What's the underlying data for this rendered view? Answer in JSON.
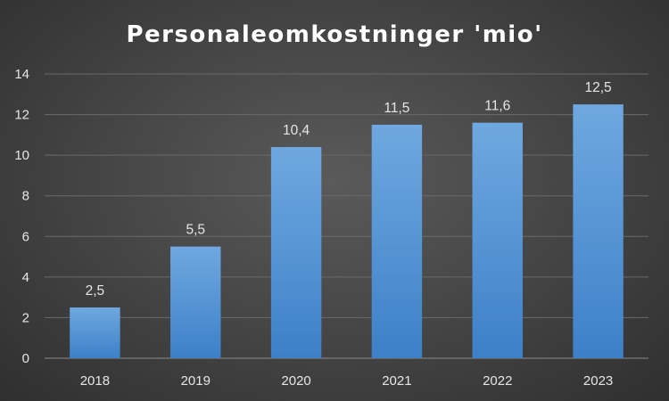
{
  "chart_data": {
    "type": "bar",
    "title": "Personaleomkostninger 'mio'",
    "xlabel": "",
    "ylabel": "",
    "categories": [
      "2018",
      "2019",
      "2020",
      "2021",
      "2022",
      "2023"
    ],
    "values": [
      2.5,
      5.5,
      10.4,
      11.5,
      11.6,
      12.5
    ],
    "data_labels": [
      "2,5",
      "5,5",
      "10,4",
      "11,5",
      "11,6",
      "12,5"
    ],
    "ylim": [
      0,
      14
    ],
    "yticks": [
      "0",
      "2",
      "4",
      "6",
      "8",
      "10",
      "12",
      "14"
    ],
    "grid": true,
    "legend": "none",
    "colors": {
      "bar_top": "#6fa8e0",
      "bar_bottom": "#3d80c8",
      "gridline": "#6a6a6a"
    }
  }
}
